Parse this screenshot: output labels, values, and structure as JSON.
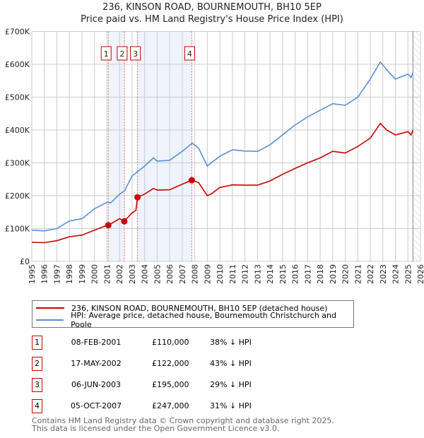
{
  "chart_data": {
    "type": "line",
    "title": "236, KINSON ROAD, BOURNEMOUTH, BH10 5EP",
    "subtitle": "Price paid vs. HM Land Registry's House Price Index (HPI)",
    "xlim": [
      1995,
      2026
    ],
    "ylim": [
      0,
      700000
    ],
    "x_ticks": [
      "1995",
      "1996",
      "1997",
      "1998",
      "1999",
      "2000",
      "2001",
      "2002",
      "2003",
      "2004",
      "2005",
      "2006",
      "2007",
      "2008",
      "2009",
      "2010",
      "2011",
      "2012",
      "2013",
      "2014",
      "2015",
      "2016",
      "2017",
      "2018",
      "2019",
      "2020",
      "2021",
      "2022",
      "2023",
      "2024",
      "2025",
      "2026"
    ],
    "y_ticks": [
      {
        "v": 0,
        "label": "£0"
      },
      {
        "v": 100000,
        "label": "£100K"
      },
      {
        "v": 200000,
        "label": "£200K"
      },
      {
        "v": 300000,
        "label": "£300K"
      },
      {
        "v": 400000,
        "label": "£400K"
      },
      {
        "v": 500000,
        "label": "£500K"
      },
      {
        "v": 600000,
        "label": "£600K"
      },
      {
        "v": 700000,
        "label": "£700K"
      }
    ],
    "grid": true,
    "series": [
      {
        "name": "236, KINSON ROAD, BOURNEMOUTH, BH10 5EP (detached house)",
        "color": "#cc0000",
        "x": [
          1995,
          1996,
          1997,
          1998,
          1999,
          2000,
          2001,
          2001.1,
          2002,
          2002.38,
          2003,
          2003.3,
          2003.43,
          2004,
          2004.7,
          2005,
          2006,
          2007,
          2007.76,
          2008.3,
          2009,
          2009.3,
          2010,
          2011,
          2012,
          2013,
          2014,
          2015,
          2016,
          2017,
          2018,
          2019,
          2020,
          2021,
          2022,
          2022.8,
          2023.3,
          2024,
          2025,
          2025.25,
          2025.4
        ],
        "y": [
          58000,
          57000,
          63000,
          75000,
          80000,
          95000,
          110000,
          110000,
          130000,
          122000,
          148000,
          155000,
          195000,
          205000,
          222000,
          217000,
          218000,
          235000,
          247000,
          240000,
          200000,
          205000,
          225000,
          233000,
          232000,
          232000,
          245000,
          265000,
          283000,
          300000,
          315000,
          335000,
          330000,
          350000,
          375000,
          420000,
          400000,
          385000,
          395000,
          385000,
          400000
        ]
      },
      {
        "name": "HPI: Average price, detached house, Bournemouth Christchurch and Poole",
        "color": "#5b8fd6",
        "x": [
          1995,
          1996,
          1997,
          1998,
          1999,
          2000,
          2001,
          2001.3,
          2002,
          2002.4,
          2003,
          2003.5,
          2004,
          2004.7,
          2005,
          2006,
          2007,
          2007.8,
          2008.3,
          2009,
          2009.3,
          2010,
          2011,
          2012,
          2013,
          2014,
          2015,
          2016,
          2017,
          2018,
          2019,
          2020,
          2021,
          2022,
          2022.8,
          2023.5,
          2024,
          2025,
          2025.25,
          2025.4
        ],
        "y": [
          95000,
          93000,
          100000,
          123000,
          130000,
          160000,
          180000,
          178000,
          205000,
          215000,
          260000,
          275000,
          290000,
          315000,
          305000,
          308000,
          335000,
          360000,
          345000,
          290000,
          300000,
          320000,
          340000,
          336000,
          335000,
          355000,
          385000,
          415000,
          440000,
          460000,
          480000,
          475000,
          500000,
          555000,
          607000,
          575000,
          555000,
          570000,
          560000,
          575000
        ]
      }
    ],
    "sales": [
      {
        "n": "1",
        "x": 2001.1,
        "y": 110000
      },
      {
        "n": "2",
        "x": 2002.38,
        "y": 122000
      },
      {
        "n": "3",
        "x": 2003.43,
        "y": 195000
      },
      {
        "n": "4",
        "x": 2007.76,
        "y": 247000
      }
    ],
    "shaded_ranges": [
      [
        2001.1,
        2002.38
      ],
      [
        2003.43,
        2007.76
      ]
    ],
    "forecast_hatch_from": 2025.4,
    "legend_position": "below"
  },
  "legend": {
    "property": "236, KINSON ROAD, BOURNEMOUTH, BH10 5EP (detached house)",
    "hpi": "HPI: Average price, detached house, Bournemouth Christchurch and Poole"
  },
  "transactions": [
    {
      "n": "1",
      "date": "08-FEB-2001",
      "price": "£110,000",
      "pct": "38% ↓ HPI"
    },
    {
      "n": "2",
      "date": "17-MAY-2002",
      "price": "£122,000",
      "pct": "43% ↓ HPI"
    },
    {
      "n": "3",
      "date": "06-JUN-2003",
      "price": "£195,000",
      "pct": "29% ↓ HPI"
    },
    {
      "n": "4",
      "date": "05-OCT-2007",
      "price": "£247,000",
      "pct": "31% ↓ HPI"
    }
  ],
  "footer": {
    "line1": "Contains HM Land Registry data © Crown copyright and database right 2025.",
    "line2": "This data is licensed under the Open Government Licence v3.0."
  }
}
